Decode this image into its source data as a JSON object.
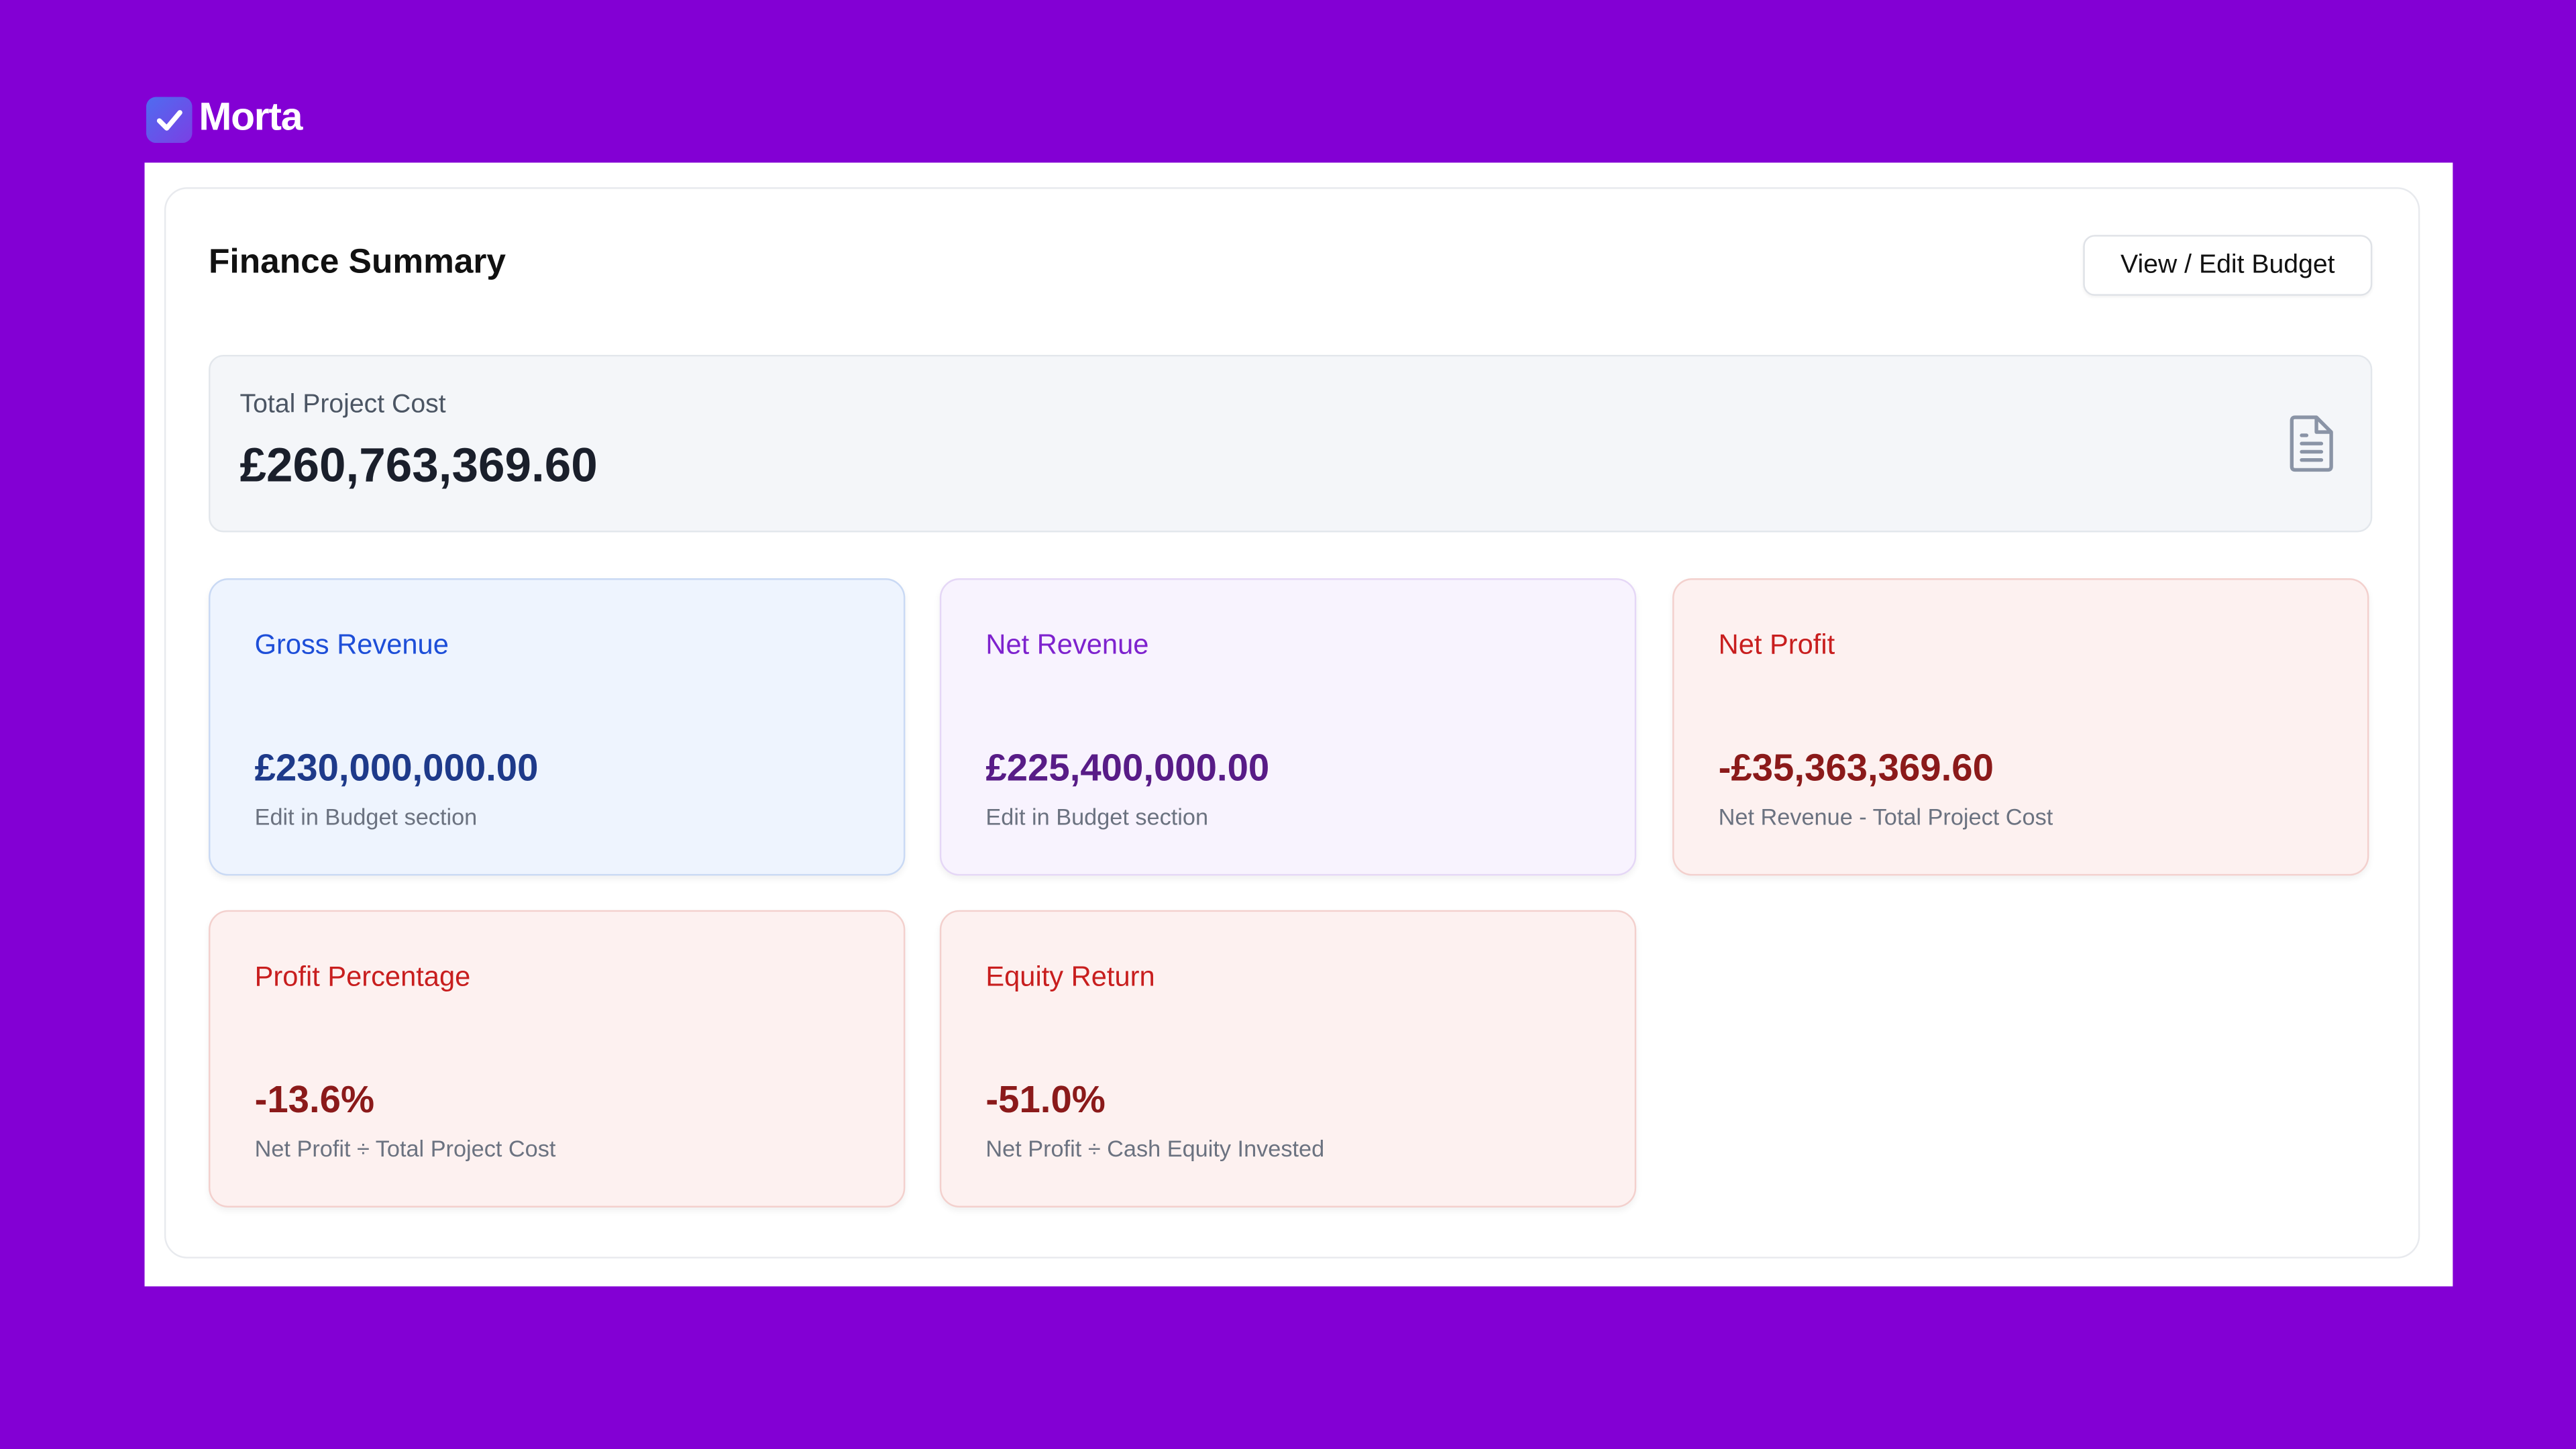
{
  "brand": "Morta",
  "header": {
    "title": "Finance Summary",
    "button": "View / Edit Budget"
  },
  "total_cost": {
    "label": "Total Project Cost",
    "value": "£260,763,369.60"
  },
  "cards": [
    {
      "label": "Gross Revenue",
      "value": "£230,000,000.00",
      "note": "Edit in Budget section"
    },
    {
      "label": "Net Revenue",
      "value": "£225,400,000.00",
      "note": "Edit in Budget section"
    },
    {
      "label": "Net Profit",
      "value": "-£35,363,369.60",
      "note": "Net Revenue - Total Project Cost"
    },
    {
      "label": "Profit Percentage",
      "value": "-13.6%",
      "note": "Net Profit ÷ Total Project Cost"
    },
    {
      "label": "Equity Return",
      "value": "-51.0%",
      "note": "Net Profit ÷ Cash Equity Invested"
    }
  ]
}
